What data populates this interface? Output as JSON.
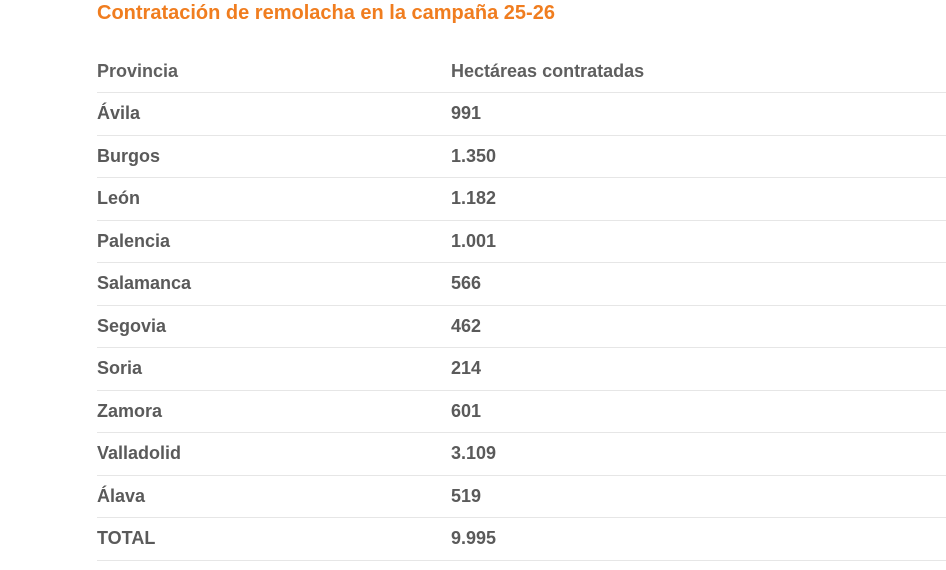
{
  "title": "Contratación de remolacha en la campaña 25-26",
  "table": {
    "headers": [
      "Provincia",
      "Hectáreas contratadas"
    ],
    "rows": [
      {
        "provincia": "Ávila",
        "hectareas": "991"
      },
      {
        "provincia": "Burgos",
        "hectareas": "1.350"
      },
      {
        "provincia": "León",
        "hectareas": "1.182"
      },
      {
        "provincia": "Palencia",
        "hectareas": "1.001"
      },
      {
        "provincia": "Salamanca",
        "hectareas": "566"
      },
      {
        "provincia": "Segovia",
        "hectareas": "462"
      },
      {
        "provincia": "Soria",
        "hectareas": "214"
      },
      {
        "provincia": "Zamora",
        "hectareas": "601"
      },
      {
        "provincia": "Valladolid",
        "hectareas": "3.109"
      },
      {
        "provincia": "Álava",
        "hectareas": "519"
      },
      {
        "provincia": "TOTAL",
        "hectareas": "9.995"
      }
    ]
  },
  "colors": {
    "title": "#f07d1f",
    "text": "#5a5a5a",
    "divider": "#e6e6e6"
  }
}
